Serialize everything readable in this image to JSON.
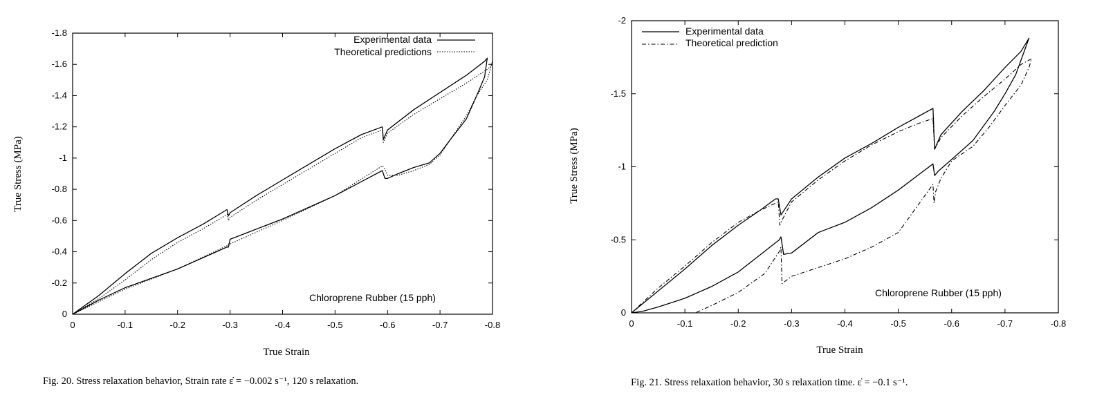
{
  "chart_data": [
    {
      "type": "line",
      "xlabel": "True Strain",
      "ylabel": "True Stress (MPa)",
      "xlim": [
        0,
        -0.8
      ],
      "ylim": [
        0,
        -1.8
      ],
      "x_ticks": [
        "0",
        "-0.1",
        "-0.2",
        "-0.3",
        "-0.4",
        "-0.5",
        "-0.6",
        "-0.7",
        "-0.8"
      ],
      "y_ticks": [
        "0",
        "-0.2",
        "-0.4",
        "-0.6",
        "-0.8",
        "-1",
        "-1.2",
        "-1.4",
        "-1.6",
        "-1.8"
      ],
      "legend_position": "top-right",
      "annotation": "Chloroprene Rubber (15 pph)",
      "caption": "Fig. 20. Stress relaxation behavior, Strain rate ε̇ = −0.002 s⁻¹, 120 s relaxation.",
      "series": [
        {
          "name": "Experimental data",
          "style": "solid",
          "x": [
            0,
            -0.05,
            -0.1,
            -0.15,
            -0.2,
            -0.25,
            -0.294,
            -0.297,
            -0.3,
            -0.35,
            -0.4,
            -0.45,
            -0.5,
            -0.55,
            -0.59,
            -0.592,
            -0.6,
            -0.65,
            -0.7,
            -0.75,
            -0.785,
            -0.79,
            -0.785,
            -0.77,
            -0.75,
            -0.72,
            -0.7,
            -0.68,
            -0.65,
            -0.62,
            -0.6,
            -0.595,
            -0.59,
            -0.5,
            -0.4,
            -0.3,
            -0.297,
            -0.294,
            -0.2,
            -0.1,
            -0.05,
            0
          ],
          "y": [
            0,
            -0.12,
            -0.26,
            -0.39,
            -0.49,
            -0.58,
            -0.67,
            -0.63,
            -0.65,
            -0.76,
            -0.86,
            -0.96,
            -1.06,
            -1.15,
            -1.2,
            -1.12,
            -1.18,
            -1.31,
            -1.42,
            -1.53,
            -1.62,
            -1.64,
            -1.52,
            -1.4,
            -1.25,
            -1.12,
            -1.03,
            -0.97,
            -0.94,
            -0.9,
            -0.87,
            -0.87,
            -0.92,
            -0.76,
            -0.61,
            -0.48,
            -0.43,
            -0.43,
            -0.29,
            -0.17,
            -0.09,
            0
          ]
        },
        {
          "name": "Theoretical predictions",
          "style": "dotted",
          "x": [
            0,
            -0.05,
            -0.1,
            -0.15,
            -0.2,
            -0.25,
            -0.295,
            -0.297,
            -0.3,
            -0.35,
            -0.4,
            -0.45,
            -0.5,
            -0.55,
            -0.59,
            -0.592,
            -0.6,
            -0.65,
            -0.7,
            -0.75,
            -0.795,
            -0.8,
            -0.79,
            -0.77,
            -0.75,
            -0.72,
            -0.7,
            -0.68,
            -0.65,
            -0.62,
            -0.6,
            -0.595,
            -0.59,
            -0.5,
            -0.4,
            -0.3,
            -0.297,
            -0.295,
            -0.2,
            -0.1,
            -0.05,
            0
          ],
          "y": [
            0,
            -0.1,
            -0.22,
            -0.35,
            -0.46,
            -0.55,
            -0.64,
            -0.6,
            -0.62,
            -0.73,
            -0.83,
            -0.93,
            -1.03,
            -1.13,
            -1.18,
            -1.1,
            -1.16,
            -1.28,
            -1.38,
            -1.48,
            -1.58,
            -1.62,
            -1.5,
            -1.4,
            -1.27,
            -1.12,
            -1.02,
            -0.96,
            -0.92,
            -0.89,
            -0.89,
            -0.93,
            -0.95,
            -0.76,
            -0.6,
            -0.45,
            -0.45,
            -0.44,
            -0.29,
            -0.16,
            -0.08,
            0
          ]
        }
      ]
    },
    {
      "type": "line",
      "xlabel": "True Strain",
      "ylabel": "True Stress (MPa)",
      "xlim": [
        0,
        -0.8
      ],
      "ylim": [
        0,
        -2
      ],
      "x_ticks": [
        "0",
        "-0.1",
        "-0.2",
        "-0.3",
        "-0.4",
        "-0.5",
        "-0.6",
        "-0.7",
        "-0.8"
      ],
      "y_ticks": [
        "0",
        "-0.5",
        "-1",
        "-1.5",
        "-2"
      ],
      "legend_position": "top-left",
      "annotation": "Chloroprene Rubber (15 pph)",
      "caption": "Fig. 21. Stress relaxation behavior, 30 s relaxation time. ε̇ = −0.1 s⁻¹.",
      "series": [
        {
          "name": "Experimental data",
          "style": "solid",
          "x": [
            0,
            -0.05,
            -0.1,
            -0.15,
            -0.2,
            -0.24,
            -0.27,
            -0.275,
            -0.28,
            -0.3,
            -0.35,
            -0.4,
            -0.45,
            -0.5,
            -0.54,
            -0.565,
            -0.568,
            -0.58,
            -0.62,
            -0.66,
            -0.7,
            -0.73,
            -0.74,
            -0.745,
            -0.735,
            -0.72,
            -0.7,
            -0.68,
            -0.66,
            -0.64,
            -0.6,
            -0.575,
            -0.568,
            -0.565,
            -0.5,
            -0.45,
            -0.4,
            -0.35,
            -0.3,
            -0.285,
            -0.28,
            -0.277,
            -0.2,
            -0.15,
            -0.1,
            -0.05,
            -0.02,
            0
          ],
          "y": [
            0,
            -0.15,
            -0.3,
            -0.46,
            -0.6,
            -0.7,
            -0.78,
            -0.78,
            -0.67,
            -0.78,
            -0.93,
            -1.06,
            -1.16,
            -1.27,
            -1.35,
            -1.4,
            -1.12,
            -1.22,
            -1.38,
            -1.52,
            -1.68,
            -1.79,
            -1.85,
            -1.88,
            -1.78,
            -1.63,
            -1.5,
            -1.38,
            -1.28,
            -1.18,
            -1.05,
            -0.97,
            -0.94,
            -1.02,
            -0.84,
            -0.72,
            -0.62,
            -0.55,
            -0.41,
            -0.4,
            -0.52,
            -0.5,
            -0.28,
            -0.18,
            -0.1,
            -0.04,
            -0.01,
            0
          ]
        },
        {
          "name": "Theoretical prediction",
          "style": "dashed",
          "x": [
            0,
            -0.05,
            -0.1,
            -0.15,
            -0.2,
            -0.24,
            -0.275,
            -0.278,
            -0.28,
            -0.3,
            -0.35,
            -0.4,
            -0.45,
            -0.5,
            -0.54,
            -0.565,
            -0.568,
            -0.58,
            -0.62,
            -0.66,
            -0.7,
            -0.73,
            -0.75,
            -0.745,
            -0.73,
            -0.7,
            -0.67,
            -0.64,
            -0.6,
            -0.58,
            -0.57,
            -0.567,
            -0.565,
            -0.5,
            -0.45,
            -0.4,
            -0.35,
            -0.3,
            -0.282,
            -0.28,
            -0.277,
            -0.25,
            -0.2,
            -0.15,
            -0.12,
            0
          ],
          "y": [
            0,
            -0.17,
            -0.32,
            -0.48,
            -0.62,
            -0.7,
            -0.76,
            -0.6,
            -0.62,
            -0.76,
            -0.91,
            -1.04,
            -1.15,
            -1.24,
            -1.3,
            -1.33,
            -1.12,
            -1.2,
            -1.35,
            -1.48,
            -1.6,
            -1.7,
            -1.74,
            -1.68,
            -1.56,
            -1.42,
            -1.27,
            -1.14,
            -1.04,
            -0.92,
            -0.83,
            -0.75,
            -0.88,
            -0.55,
            -0.45,
            -0.37,
            -0.31,
            -0.25,
            -0.2,
            -0.45,
            -0.42,
            -0.27,
            -0.14,
            -0.05,
            0,
            0
          ]
        }
      ]
    }
  ]
}
